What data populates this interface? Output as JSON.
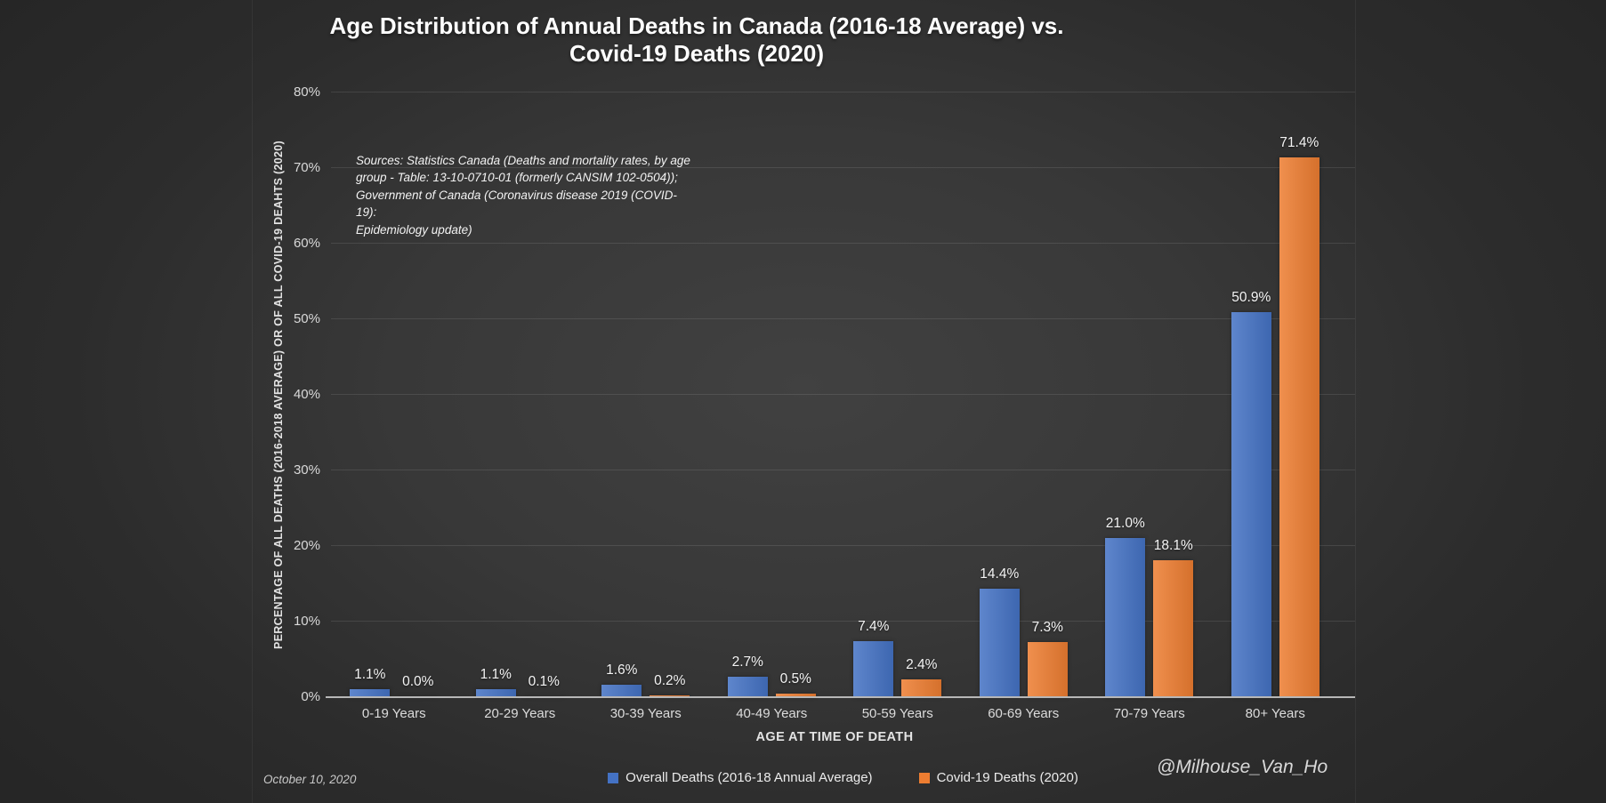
{
  "title": {
    "line1": "Age Distribution of Annual Deaths in Canada (2016-18 Average) vs.",
    "line2": "Covid-19 Deaths (2020)"
  },
  "y_axis": {
    "title": "PERCENTAGE OF ALL DEATHS (2016-2018 AVERAGE) OR OF ALL COVID-19 DEAHTS (2020)"
  },
  "x_axis": {
    "title": "AGE AT TIME OF DEATH"
  },
  "source_note": "Sources: Statistics Canada (Deaths and mortality rates, by age\ngroup - Table: 13-10-0710-01 (formerly CANSIM 102-0504));\nGovernment of Canada (Coronavirus disease 2019 (COVID-19):\nEpidemiology update)",
  "footer": {
    "date": "October 10, 2020",
    "handle": "@Milhouse_Van_Ho"
  },
  "legend": [
    {
      "label": "Overall Deaths (2016-18 Annual Average)",
      "color": "#4472C4"
    },
    {
      "label": "Covid-19 Deaths (2020)",
      "color": "#ED7D31"
    }
  ],
  "colors": {
    "overall_series": "#4472C4",
    "covid_series": "#ED7D31",
    "background": "#262626",
    "gridline": "rgba(255,255,255,0.10)",
    "axis_line": "#b7b7b7"
  },
  "chart_data": {
    "type": "bar",
    "title": "Age Distribution of Annual Deaths in Canada (2016-18 Average) vs. Covid-19 Deaths (2020)",
    "xlabel": "AGE AT TIME OF DEATH",
    "ylabel": "PERCENTAGE OF ALL DEATHS (2016-2018 AVERAGE) OR OF ALL COVID-19 DEAHTS (2020)",
    "categories": [
      "0-19 Years",
      "20-29 Years",
      "30-39 Years",
      "40-49 Years",
      "50-59 Years",
      "60-69 Years",
      "70-79 Years",
      "80+ Years"
    ],
    "series": [
      {
        "name": "Overall Deaths (2016-18 Annual Average)",
        "color": "#4472C4",
        "values": [
          1.1,
          1.1,
          1.6,
          2.7,
          7.4,
          14.4,
          21.0,
          50.9
        ],
        "labels": [
          "1.1%",
          "1.1%",
          "1.6%",
          "2.7%",
          "7.4%",
          "14.4%",
          "21.0%",
          "50.9%"
        ]
      },
      {
        "name": "Covid-19 Deaths (2020)",
        "color": "#ED7D31",
        "values": [
          0.0,
          0.1,
          0.2,
          0.5,
          2.4,
          7.3,
          18.1,
          71.4
        ],
        "labels": [
          "0.0%",
          "0.1%",
          "0.2%",
          "0.5%",
          "2.4%",
          "7.3%",
          "18.1%",
          "71.4%"
        ]
      }
    ],
    "ylim": [
      0,
      80
    ],
    "y_ticks": [
      "0%",
      "10%",
      "20%",
      "30%",
      "40%",
      "50%",
      "60%",
      "70%",
      "80%"
    ],
    "grid": true,
    "legend_position": "bottom"
  }
}
